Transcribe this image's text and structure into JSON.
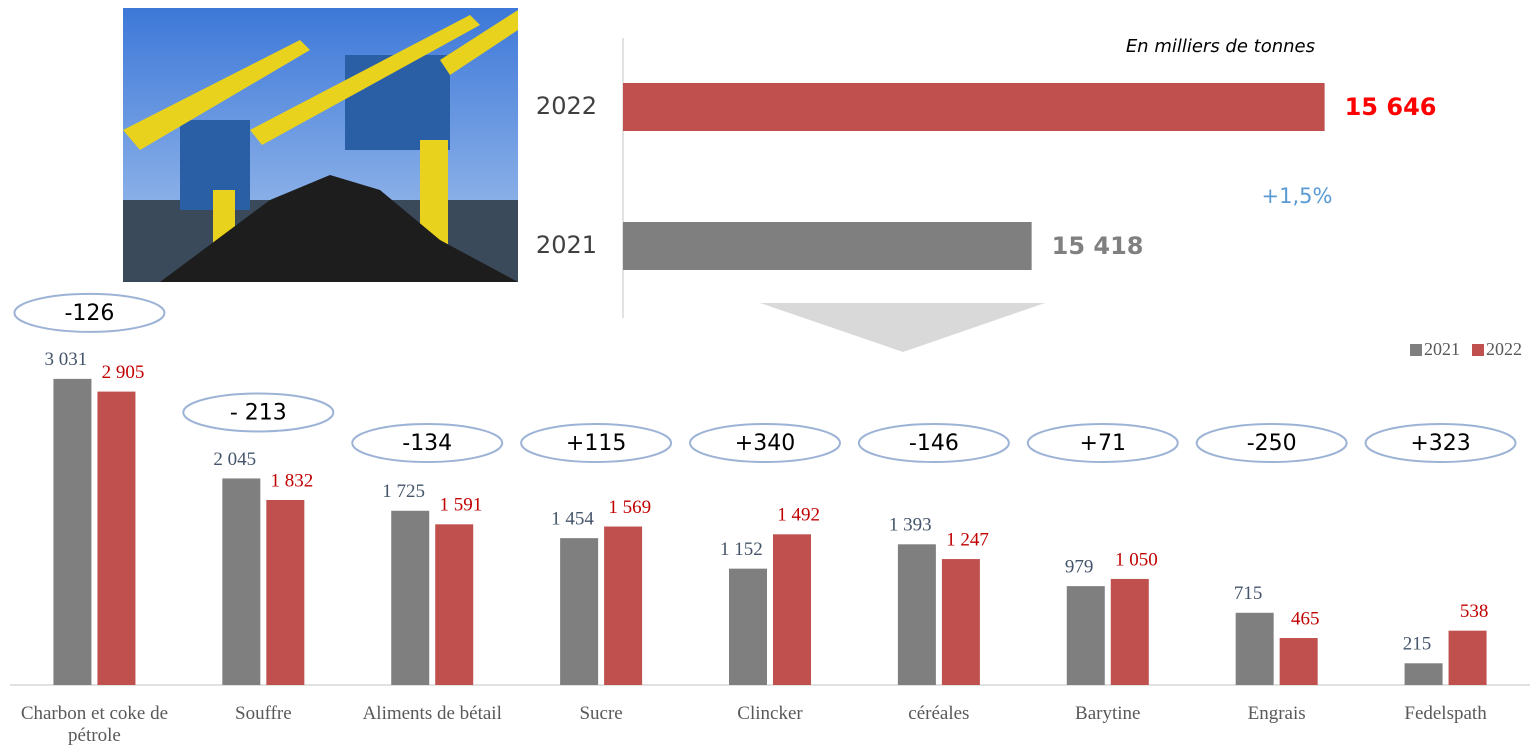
{
  "chart_data": [
    {
      "type": "hbar",
      "annotations": [
        "En milliers de tonnes",
        "+1,5%"
      ],
      "categories": [
        "2022",
        "2021"
      ],
      "values": [
        15646,
        15418
      ],
      "value_labels": [
        "15 646",
        "15 418"
      ],
      "colors": [
        "#c0504d",
        "#7f7f7f"
      ],
      "label_colors": [
        "#ff0000",
        "#808080"
      ],
      "xlim": [
        15100,
        15700
      ]
    },
    {
      "type": "bar",
      "categories": [
        "Charbon et coke de pétrole",
        "Souffre",
        "Aliments de bétail",
        "Sucre",
        "Clincker",
        "céréales",
        "Barytine",
        "Engrais",
        "Fedelspath"
      ],
      "series": [
        {
          "name": "2021",
          "color": "#7f7f7f",
          "label_color": "#44546a",
          "values": [
            3031,
            2045,
            1725,
            1454,
            1152,
            1393,
            979,
            715,
            215
          ],
          "value_labels": [
            "3 031",
            "2 045",
            "1 725",
            "1 454",
            "1 152",
            "1 393",
            "979",
            "715",
            "215"
          ]
        },
        {
          "name": "2022",
          "color": "#c0504d",
          "label_color": "#c00000",
          "values": [
            2905,
            1832,
            1591,
            1569,
            1492,
            1247,
            1050,
            465,
            538
          ],
          "value_labels": [
            "2 905",
            "1 832",
            "1 591",
            "1 569",
            "1 492",
            "1 247",
            "1 050",
            "465",
            "538"
          ]
        }
      ],
      "differences": [
        "-126",
        "- 213",
        "-134",
        "+115",
        "+340",
        "-146",
        "+71",
        "-250",
        "+323"
      ],
      "ylim": [
        0,
        3500
      ],
      "legend": "top-right"
    }
  ]
}
